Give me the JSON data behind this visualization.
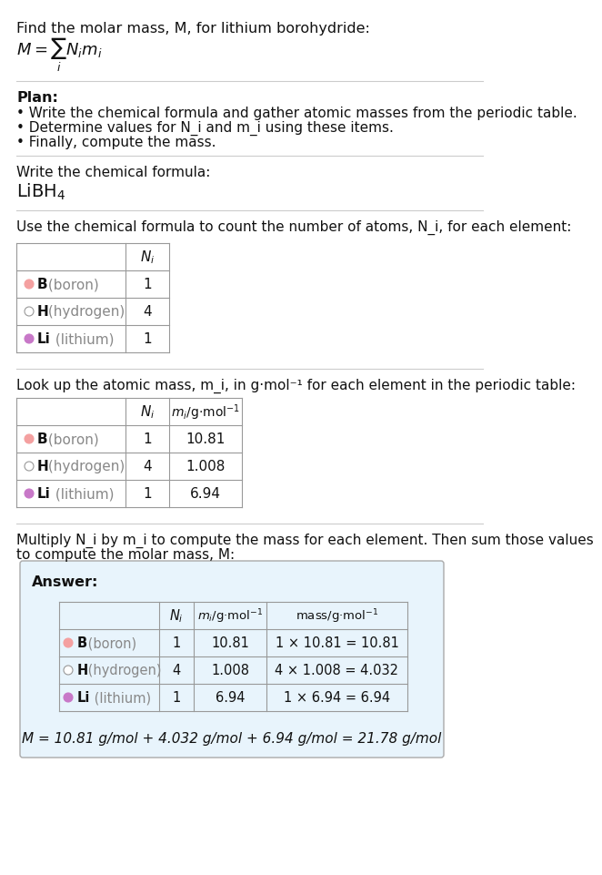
{
  "title_line1": "Find the molar mass, M, for lithium borohydride:",
  "formula_equation": "M = ∑ N_i m_i",
  "plan_header": "Plan:",
  "plan_bullets": [
    "• Write the chemical formula and gather atomic masses from the periodic table.",
    "• Determine values for N_i and m_i using these items.",
    "• Finally, compute the mass."
  ],
  "formula_label": "Write the chemical formula:",
  "formula": "LiBH_4",
  "table1_header": "Use the chemical formula to count the number of atoms, N_i, for each element:",
  "table2_header": "Look up the atomic mass, m_i, in g·mol⁻¹ for each element in the periodic table:",
  "table3_header": "Multiply N_i by m_i to compute the mass for each element. Then sum those values\nto compute the molar mass, M:",
  "elements": [
    "B (boron)",
    "H (hydrogen)",
    "Li (lithium)"
  ],
  "element_symbols": [
    "B",
    "H",
    "Li"
  ],
  "element_colors": [
    "#f4a0a0",
    "#ffffff",
    "#c878c8"
  ],
  "N_i": [
    1,
    4,
    1
  ],
  "m_i": [
    "10.81",
    "1.008",
    "6.94"
  ],
  "mass_expr": [
    "1 × 10.81 = 10.81",
    "4 × 1.008 = 4.032",
    "1 × 6.94 = 6.94"
  ],
  "final_eq": "M = 10.81 g/mol + 4.032 g/mol + 6.94 g/mol = 21.78 g/mol",
  "answer_bg": "#e8f4fc",
  "table_border": "#aaaaaa",
  "text_color": "#222222",
  "gray_text": "#888888",
  "bg_color": "#ffffff"
}
